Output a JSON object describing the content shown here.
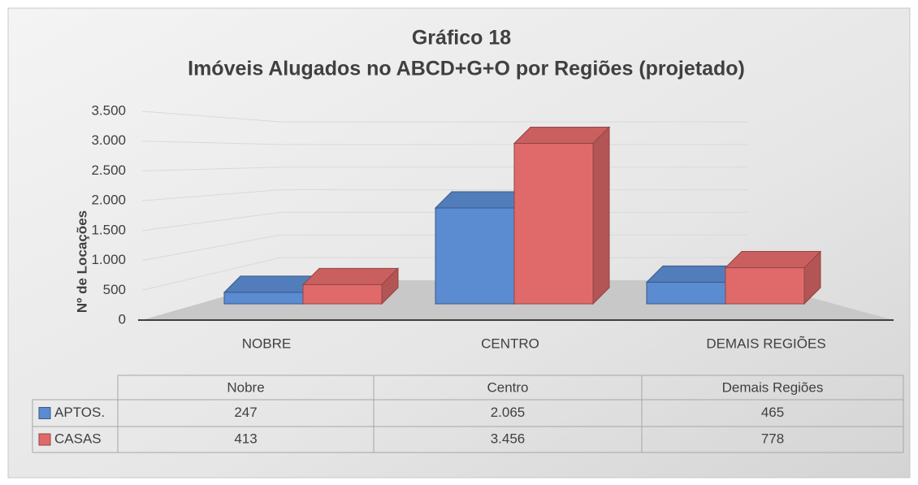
{
  "chart_data": {
    "type": "bar3d",
    "title": "Gráfico 18",
    "subtitle": "Imóveis  Alugados no ABCD+G+O por Regiões (projetado)",
    "y_label": "Nº de Locações",
    "categories": [
      "NOBRE",
      "CENTRO",
      "DEMAIS REGIÕES"
    ],
    "table_headers": [
      "Nobre",
      "Centro",
      "Demais Regiões"
    ],
    "series": [
      {
        "name": "APTOS.",
        "color": "#5b8bd0",
        "values": [
          247,
          2065,
          465
        ],
        "value_labels": [
          "247",
          "2.065",
          "465"
        ]
      },
      {
        "name": "CASAS",
        "color": "#e06a6a",
        "values": [
          413,
          3456,
          778
        ],
        "value_labels": [
          "413",
          "3.456",
          "778"
        ]
      }
    ],
    "ylim": [
      0,
      3500
    ],
    "yticks": [
      0,
      500,
      {
        "value": 1000,
        "label": "1.000"
      },
      {
        "value": 1500,
        "label": "1.500"
      },
      {
        "value": 2000,
        "label": "2.000"
      },
      {
        "value": 2500,
        "label": "2.500"
      },
      {
        "value": 3000,
        "label": "3.000"
      },
      {
        "value": 3500,
        "label": "3.500"
      }
    ],
    "grid": true
  }
}
